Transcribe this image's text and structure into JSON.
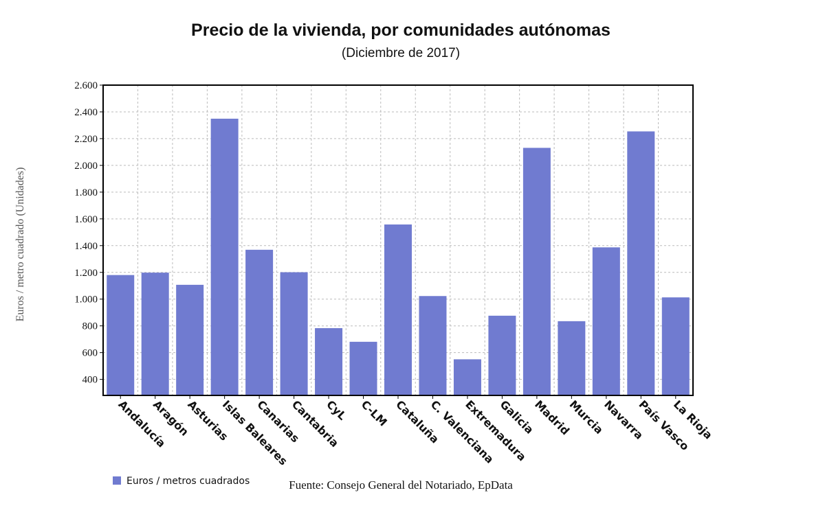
{
  "chart_data": {
    "type": "bar",
    "title": "Precio de la vivienda, por comunidades autónomas",
    "subtitle": "(Diciembre de 2017)",
    "ylabel": "Euros / metro cuadrado (Unidades)",
    "xlabel": "",
    "ylim": [
      280,
      2600
    ],
    "yticks": [
      400,
      600,
      800,
      1000,
      1200,
      1400,
      1600,
      1800,
      2000,
      2200,
      2400,
      2600
    ],
    "ytick_labels": [
      "400",
      "600",
      "800",
      "1.000",
      "1.200",
      "1.400",
      "1.600",
      "1.800",
      "2.000",
      "2.200",
      "2.400",
      "2.600"
    ],
    "grid": true,
    "legend_position": "bottom-left",
    "categories": [
      "Andalucía",
      "Aragón",
      "Asturias",
      "Islas Baleares",
      "Canarias",
      "Cantabria",
      "CyL",
      "C-LM",
      "Cataluña",
      "C. Valenciana",
      "Extremadura",
      "Galicia",
      "Madrid",
      "Murcia",
      "Navarra",
      "País Vasco",
      "La Rioja"
    ],
    "series": [
      {
        "name": "Euros / metros cuadrados",
        "color": "#707bd0",
        "values": [
          1180,
          1198,
          1107,
          2349,
          1369,
          1201,
          783,
          681,
          1558,
          1023,
          550,
          876,
          2131,
          835,
          1387,
          2254,
          1013
        ]
      }
    ],
    "source": "Fuente: Consejo General del Notariado, EpData"
  }
}
